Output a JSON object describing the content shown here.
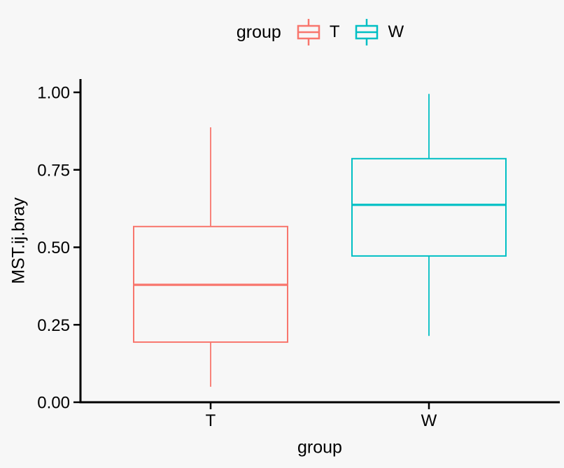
{
  "figure": {
    "background": "#F7F7F7",
    "text_color": "#000000",
    "axis_color": "#000000"
  },
  "legend": {
    "title": "group",
    "position": "top",
    "items": [
      {
        "label": "T",
        "color": "#F8766D",
        "glyph": "boxplot-key-icon"
      },
      {
        "label": "W",
        "color": "#00BFC4",
        "glyph": "boxplot-key-icon"
      }
    ]
  },
  "chart_data": {
    "type": "boxplot",
    "title": "",
    "xlabel": "group",
    "ylabel": "MST.ij.bray",
    "categories": [
      "T",
      "W"
    ],
    "ylim": [
      0.0,
      1.0
    ],
    "yticks": [
      0.0,
      0.25,
      0.5,
      0.75,
      1.0
    ],
    "ytick_labels": [
      "0.00",
      "0.25",
      "0.50",
      "0.75",
      "1.00"
    ],
    "grid": false,
    "legend_position": "top",
    "series": [
      {
        "name": "T",
        "color": "#F8766D",
        "whisker_low": 0.05,
        "q1": 0.194,
        "median": 0.379,
        "q3": 0.567,
        "whisker_high": 0.887
      },
      {
        "name": "W",
        "color": "#00BFC4",
        "whisker_low": 0.214,
        "q1": 0.472,
        "median": 0.637,
        "q3": 0.786,
        "whisker_high": 0.995
      }
    ]
  }
}
